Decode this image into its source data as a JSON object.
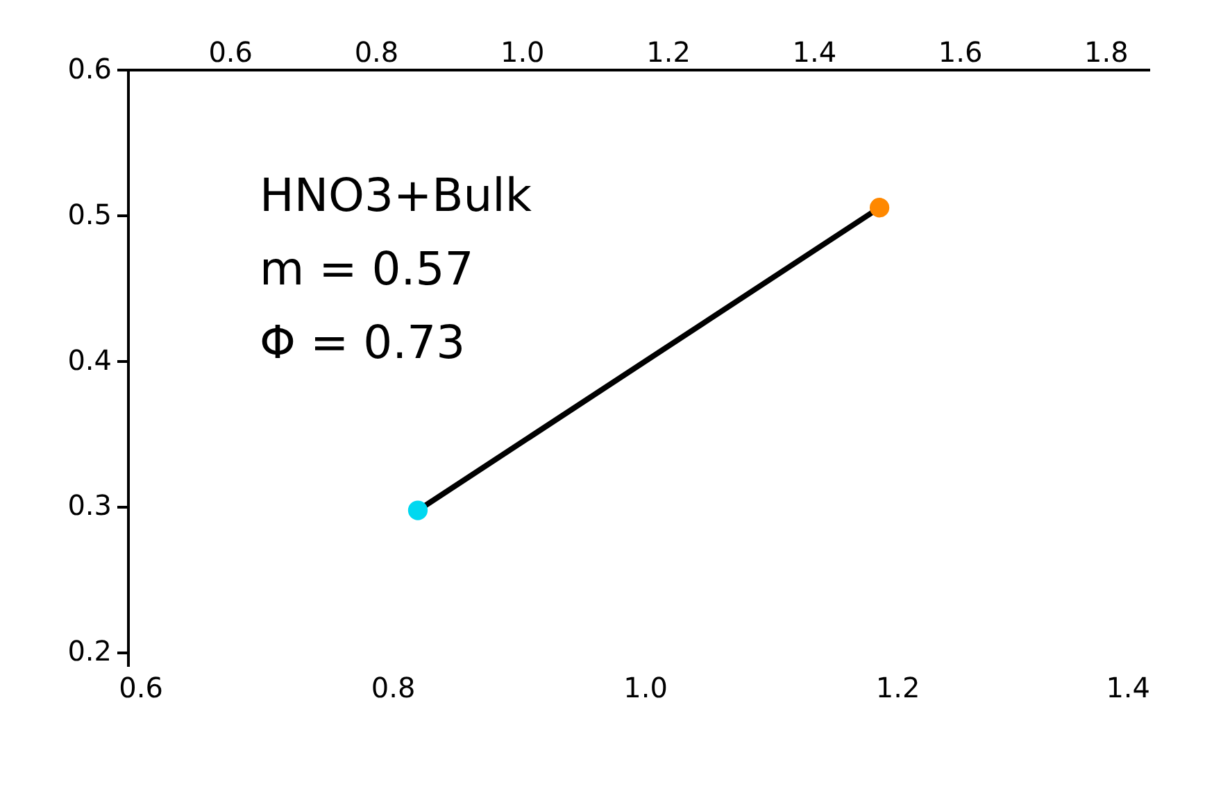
{
  "chart_data": {
    "type": "line",
    "x": [
      0.82,
      1.186
    ],
    "series": [
      {
        "type": "line",
        "color": "#000000",
        "values": [
          0.297,
          0.505
        ],
        "marker": "none"
      },
      {
        "type": "scatter",
        "colors": [
          "#00d8f0",
          "#ff8800"
        ],
        "values": [
          0.297,
          0.505
        ],
        "marker": "circle"
      }
    ],
    "xlim": [
      0.59,
      1.4
    ],
    "xticks": [
      {
        "value": 0.6,
        "label": "0.6"
      },
      {
        "value": 0.8,
        "label": "0.8"
      },
      {
        "value": 1.0,
        "label": "1.0"
      },
      {
        "value": 1.2,
        "label": "1.2"
      },
      {
        "value": 1.4,
        "label": "1.4"
      }
    ],
    "x2lim": [
      0.46,
      1.86
    ],
    "x2ticks": [
      {
        "value": 0.6,
        "label": "0.6"
      },
      {
        "value": 0.8,
        "label": "0.8"
      },
      {
        "value": 1.0,
        "label": "1.0"
      },
      {
        "value": 1.2,
        "label": "1.2"
      },
      {
        "value": 1.4,
        "label": "1.4"
      },
      {
        "value": 1.6,
        "label": "1.6"
      },
      {
        "value": 1.8,
        "label": "1.8"
      }
    ],
    "ylim": [
      0.19,
      0.6
    ],
    "yticks": [
      0.2,
      0.3,
      0.4,
      0.5,
      0.6
    ],
    "annotations": [
      "HNO3+Bulk",
      "m = 0.57",
      "Φ = 0.73"
    ],
    "grid": false
  }
}
